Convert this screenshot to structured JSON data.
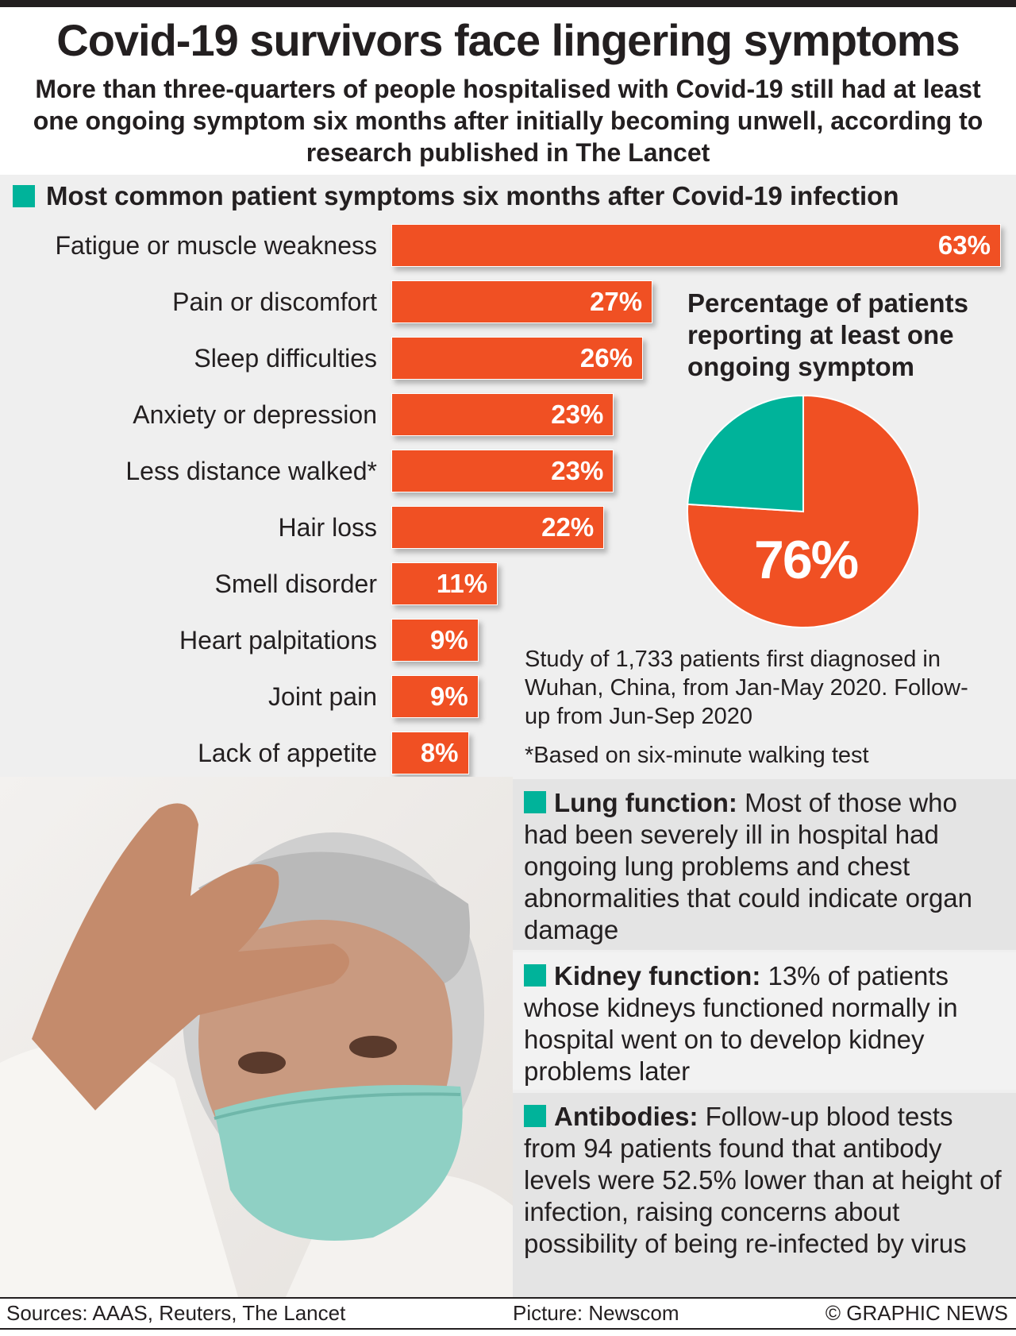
{
  "title": "Covid-19 survivors face lingering symptoms",
  "subtitle": "More than three-quarters of people hospitalised with Covid-19 still had at least one ongoing symptom six months after initially becoming unwell, according to research published in The Lancet",
  "colors": {
    "bar": "#f05023",
    "accent": "#00b39a",
    "background": "#efefef"
  },
  "chart_data": [
    {
      "type": "bar",
      "orientation": "horizontal",
      "title": "Most common patient symptoms six months after Covid-19 infection",
      "categories": [
        "Fatigue or muscle weakness",
        "Pain or discomfort",
        "Sleep difficulties",
        "Anxiety or depression",
        "Less distance walked*",
        "Hair loss",
        "Smell disorder",
        "Heart palpitations",
        "Joint pain",
        "Lack of appetite"
      ],
      "values": [
        63,
        27,
        26,
        23,
        23,
        22,
        11,
        9,
        9,
        8
      ],
      "labels": [
        "63%",
        "27%",
        "26%",
        "23%",
        "23%",
        "22%",
        "11%",
        "9%",
        "9%",
        "8%"
      ],
      "unit": "%"
    },
    {
      "type": "pie",
      "title": "Percentage of patients reporting at least one ongoing symptom",
      "values": [
        76,
        24
      ],
      "label": "76%",
      "colors": [
        "#f05023",
        "#00b39a"
      ]
    }
  ],
  "study_note": "Study of 1,733 patients first diagnosed in Wuhan, China, from Jan-May 2020. Follow-up from Jun-Sep 2020",
  "footnote": "*Based on six-minute walking test",
  "boxes": [
    {
      "heading": "Lung function:",
      "text": " Most of those who had been severely ill in hospital had ongoing lung problems and chest abnormalities that could indicate organ damage"
    },
    {
      "heading": "Kidney function:",
      "text": " 13% of patients whose kidneys functioned normally in hospital went on to develop kidney problems later"
    },
    {
      "heading": "Antibodies:",
      "text": " Follow-up blood tests from 94 patients found that antibody levels were 52.5% lower than at height of infection, raising concerns about possibility of being re-infected by virus"
    }
  ],
  "footer": {
    "sources": "Sources: AAAS, Reuters, The Lancet",
    "picture": "Picture: Newscom",
    "credit": "© GRAPHIC NEWS"
  }
}
